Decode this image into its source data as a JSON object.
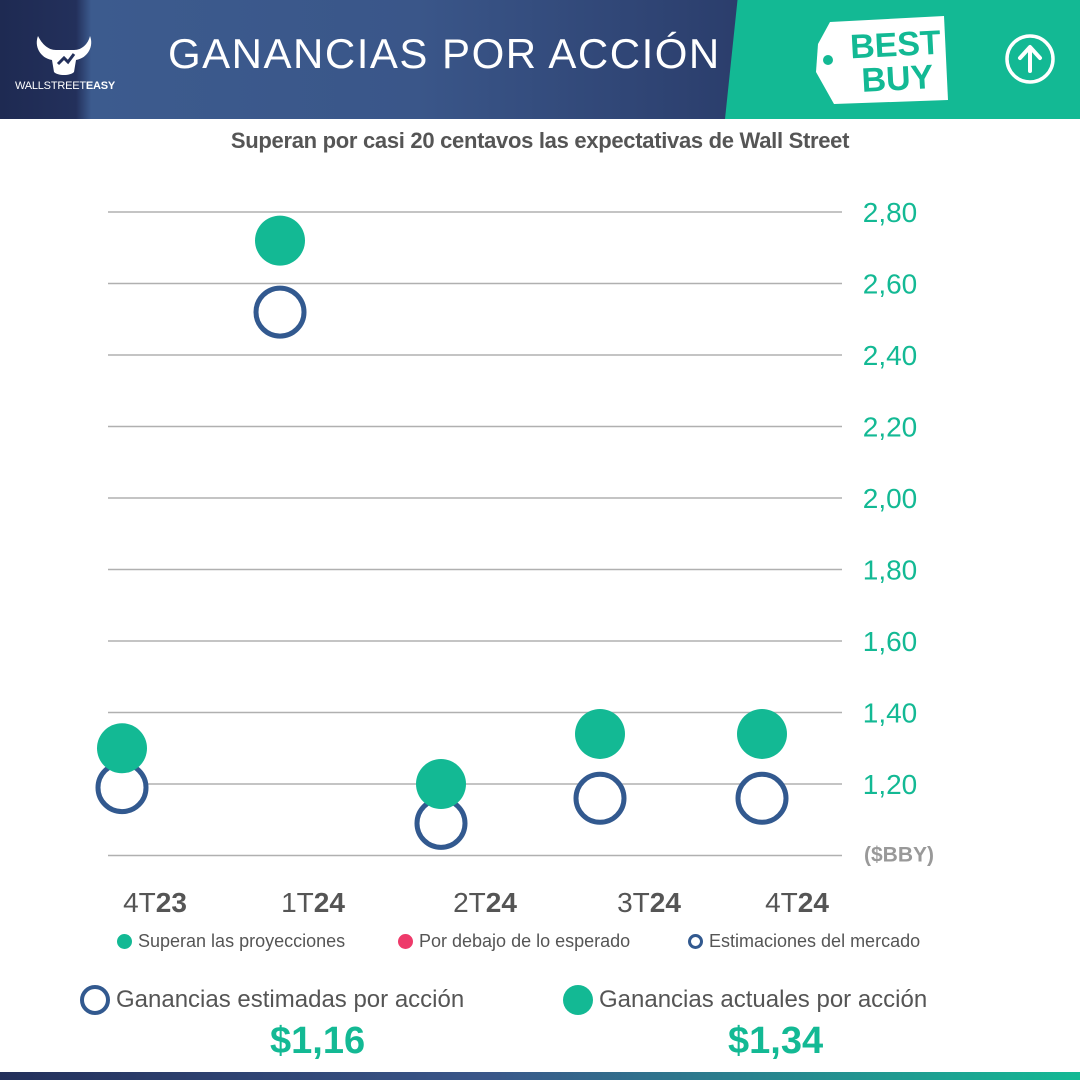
{
  "header": {
    "brand_wall": "WALLSTREET",
    "brand_easy": "EASY",
    "title": "GANANCIAS POR ACCIÓN",
    "company_logo_line1": "BEST",
    "company_logo_line2": "BUY",
    "up_icon": "arrow-up-circle-icon"
  },
  "subtitle": "Superan por casi 20 centavos las expectativas de Wall Street",
  "colors": {
    "beat": "#13b994",
    "miss": "#ee3a6a",
    "estimate": "#32598f",
    "grid": "#b0b0b0"
  },
  "chart_data": {
    "type": "scatter",
    "title": "Superan por casi 20 centavos las expectativas de Wall Street",
    "ylabel": "($BBY)",
    "ylim": [
      1.0,
      2.8
    ],
    "yticks": [
      1.2,
      1.4,
      1.6,
      1.8,
      2.0,
      2.2,
      2.4,
      2.6,
      2.8
    ],
    "ytick_labels": [
      "1,20",
      "1,40",
      "1,60",
      "1,80",
      "2,00",
      "2,20",
      "2,40",
      "2,60",
      "2,80"
    ],
    "categories": [
      {
        "prefix": "4T",
        "year": "23"
      },
      {
        "prefix": "1T",
        "year": "24"
      },
      {
        "prefix": "2T",
        "year": "24"
      },
      {
        "prefix": "3T",
        "year": "24"
      },
      {
        "prefix": "4T",
        "year": "24"
      }
    ],
    "series": [
      {
        "name": "Superan las proyecciones",
        "style": "filled",
        "color": "#13b994",
        "values": [
          1.3,
          2.72,
          1.2,
          1.34,
          1.34
        ]
      },
      {
        "name": "Estimaciones del mercado",
        "style": "hollow",
        "color": "#32598f",
        "values": [
          1.19,
          2.52,
          1.09,
          1.16,
          1.16
        ]
      }
    ],
    "grid": true,
    "legend_position": "bottom"
  },
  "legend": [
    {
      "label": "Superan las proyecciones",
      "style": "filled",
      "color": "#13b994"
    },
    {
      "label": "Por debajo de lo esperado",
      "style": "filled",
      "color": "#ee3a6a"
    },
    {
      "label": "Estimaciones del mercado",
      "style": "hollow",
      "color": "#32598f"
    }
  ],
  "summary": {
    "estimated_label": "Ganancias estimadas por acción",
    "estimated_value": "$1,16",
    "actual_label": "Ganancias actuales por acción",
    "actual_value": "$1,34"
  }
}
